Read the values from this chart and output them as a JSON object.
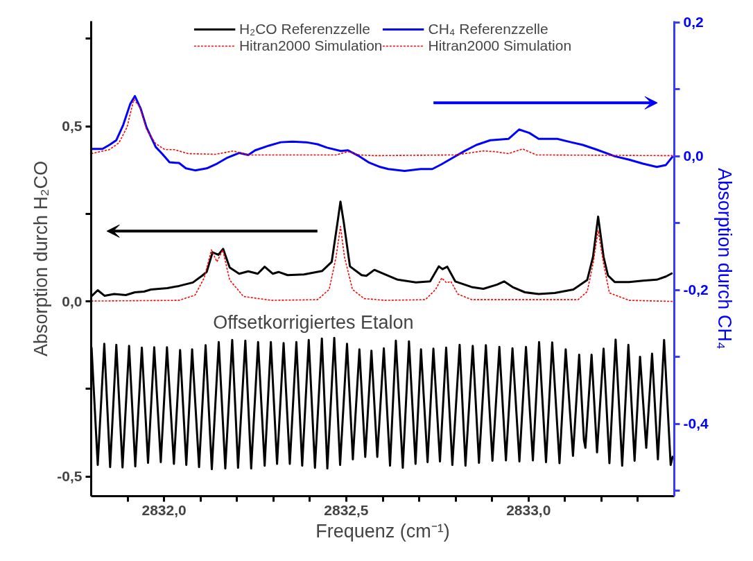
{
  "chart_data": {
    "type": "line",
    "xlabel": "Frequenz (cm⁻¹)",
    "ylabel": "Absorption durch H₂CO",
    "y2label": "Absorption durch CH₄",
    "xlim": [
      2831.8,
      2833.4
    ],
    "xticks": [
      {
        "value": 2831.9,
        "label": null
      },
      {
        "value": 2832.0,
        "label": "2832,0"
      },
      {
        "value": 2832.1,
        "label": null
      },
      {
        "value": 2832.2,
        "label": null
      },
      {
        "value": 2832.3,
        "label": null
      },
      {
        "value": 2832.4,
        "label": null
      },
      {
        "value": 2832.5,
        "label": "2832,5"
      },
      {
        "value": 2832.6,
        "label": null
      },
      {
        "value": 2832.7,
        "label": null
      },
      {
        "value": 2832.8,
        "label": null
      },
      {
        "value": 2832.9,
        "label": null
      },
      {
        "value": 2833.0,
        "label": "2833,0"
      },
      {
        "value": 2833.1,
        "label": null
      },
      {
        "value": 2833.2,
        "label": null
      },
      {
        "value": 2833.3,
        "label": null
      }
    ],
    "ylim": [
      -0.556,
      0.8
    ],
    "yticks": [
      {
        "value": -0.5,
        "label": "-0,5"
      },
      {
        "value": -0.25,
        "label": null
      },
      {
        "value": 0.0,
        "label": "0,0"
      },
      {
        "value": 0.25,
        "label": null
      },
      {
        "value": 0.5,
        "label": "0,5"
      },
      {
        "value": 0.75,
        "label": null
      }
    ],
    "y2lim": [
      -0.508,
      0.202
    ],
    "y2ticks": [
      {
        "value": -0.5,
        "label": null
      },
      {
        "value": -0.4,
        "label": "-0,4"
      },
      {
        "value": -0.3,
        "label": null
      },
      {
        "value": -0.2,
        "label": "-0,2"
      },
      {
        "value": -0.1,
        "label": null
      },
      {
        "value": 0.0,
        "label": "0,0"
      },
      {
        "value": 0.1,
        "label": null
      },
      {
        "value": 0.2,
        "label": "0,2"
      }
    ],
    "legend": "top",
    "annotations": [
      "Offsetkorrigiertes Etalon"
    ],
    "series": [
      {
        "name": "H₂CO Referenzzelle",
        "color": "#000000",
        "line_style": "solid",
        "x": [
          2831.8,
          2831.818,
          2831.837,
          2831.863,
          2831.895,
          2831.92,
          2831.945,
          2831.964,
          2832.009,
          2832.041,
          2832.079,
          2832.104,
          2832.117,
          2832.133,
          2832.149,
          2832.162,
          2832.18,
          2832.206,
          2832.231,
          2832.257,
          2832.276,
          2832.298,
          2832.314,
          2832.339,
          2832.384,
          2832.434,
          2832.46,
          2832.476,
          2832.484,
          2832.493,
          2832.51,
          2832.542,
          2832.555,
          2832.577,
          2832.606,
          2832.641,
          2832.691,
          2832.73,
          2832.754,
          2832.764,
          2832.777,
          2832.799,
          2832.844,
          2832.876,
          2832.914,
          2832.933,
          2832.958,
          2832.99,
          2833.028,
          2833.072,
          2833.123,
          2833.161,
          2833.177,
          2833.191,
          2833.206,
          2833.218,
          2833.237,
          2833.276,
          2833.314,
          2833.352,
          2833.377,
          2833.395
        ],
        "values": [
          0.014,
          0.032,
          0.016,
          0.021,
          0.018,
          0.026,
          0.028,
          0.034,
          0.038,
          0.044,
          0.054,
          0.073,
          0.084,
          0.14,
          0.133,
          0.15,
          0.097,
          0.079,
          0.086,
          0.079,
          0.099,
          0.079,
          0.084,
          0.075,
          0.077,
          0.087,
          0.113,
          0.226,
          0.285,
          0.226,
          0.1,
          0.075,
          0.073,
          0.09,
          0.077,
          0.062,
          0.054,
          0.057,
          0.1,
          0.092,
          0.099,
          0.057,
          0.041,
          0.036,
          0.048,
          0.057,
          0.04,
          0.026,
          0.021,
          0.024,
          0.034,
          0.061,
          0.127,
          0.242,
          0.127,
          0.074,
          0.055,
          0.055,
          0.059,
          0.062,
          0.071,
          0.081
        ]
      },
      {
        "name": "Hitran2000 Simulation",
        "color": "#ff0000",
        "line_style": "dashed",
        "x": [
          2831.8,
          2832.041,
          2832.085,
          2832.11,
          2832.13,
          2832.145,
          2832.161,
          2832.18,
          2832.218,
          2832.295,
          2832.421,
          2832.453,
          2832.472,
          2832.484,
          2832.495,
          2832.517,
          2832.549,
          2832.606,
          2832.717,
          2832.745,
          2832.762,
          2832.775,
          2832.787,
          2832.806,
          2832.844,
          2833.136,
          2833.161,
          2833.177,
          2833.191,
          2833.206,
          2833.222,
          2833.276,
          2833.395
        ],
        "values": [
          0.001,
          0.003,
          0.018,
          0.067,
          0.147,
          0.113,
          0.147,
          0.061,
          0.014,
          0.003,
          0.005,
          0.034,
          0.127,
          0.214,
          0.127,
          0.034,
          0.008,
          0.003,
          0.005,
          0.034,
          0.067,
          0.053,
          0.057,
          0.021,
          0.005,
          0.005,
          0.028,
          0.107,
          0.203,
          0.107,
          0.024,
          0.003,
          0.0
        ]
      },
      {
        "name": "CH₄ Referenzzelle",
        "color": "#0000ff",
        "line_style": "solid",
        "axis": "y2",
        "x": [
          2831.8,
          2831.831,
          2831.85,
          2831.869,
          2831.888,
          2831.907,
          2831.92,
          2831.936,
          2831.952,
          2831.977,
          2831.996,
          2832.015,
          2832.041,
          2832.06,
          2832.085,
          2832.117,
          2832.142,
          2832.174,
          2832.206,
          2832.231,
          2832.25,
          2832.288,
          2832.32,
          2832.352,
          2832.39,
          2832.421,
          2832.447,
          2832.485,
          2832.504,
          2832.536,
          2832.561,
          2832.593,
          2832.615,
          2832.66,
          2832.704,
          2832.736,
          2832.761,
          2832.793,
          2832.825,
          2832.857,
          2832.895,
          2832.945,
          2832.974,
          2833.002,
          2833.028,
          2833.079,
          2833.117,
          2833.149,
          2833.187,
          2833.237,
          2833.276,
          2833.314,
          2833.352,
          2833.377,
          2833.396
        ],
        "values": [
          0.011,
          0.011,
          0.017,
          0.024,
          0.047,
          0.078,
          0.09,
          0.071,
          0.043,
          0.014,
          0.003,
          -0.009,
          -0.01,
          -0.018,
          -0.021,
          -0.018,
          -0.012,
          -0.002,
          0.005,
          0.002,
          0.009,
          0.016,
          0.021,
          0.022,
          0.021,
          0.018,
          0.013,
          0.008,
          0.009,
          0.0,
          -0.009,
          -0.016,
          -0.019,
          -0.022,
          -0.019,
          -0.019,
          -0.012,
          -0.002,
          0.008,
          0.017,
          0.024,
          0.026,
          0.04,
          0.035,
          0.026,
          0.026,
          0.021,
          0.017,
          0.01,
          0.0,
          -0.005,
          -0.011,
          -0.016,
          -0.013,
          0.0
        ]
      },
      {
        "name": "Hitran2000 Simulation",
        "color": "#ff0000",
        "line_style": "dashed",
        "axis": "y2",
        "x": [
          2831.8,
          2831.85,
          2831.876,
          2831.898,
          2831.917,
          2831.933,
          2831.952,
          2831.977,
          2832.002,
          2832.028,
          2832.066,
          2832.142,
          2832.19,
          2832.231,
          2832.421,
          2832.472,
          2832.504,
          2832.536,
          2832.577,
          2832.799,
          2832.876,
          2832.907,
          2832.945,
          2832.984,
          2833.022,
          2833.396
        ],
        "values": [
          0.004,
          0.01,
          0.02,
          0.043,
          0.085,
          0.074,
          0.04,
          0.019,
          0.01,
          0.01,
          0.004,
          0.003,
          0.008,
          0.002,
          0.002,
          0.002,
          0.007,
          0.002,
          0.001,
          0.002,
          0.008,
          0.007,
          0.004,
          0.011,
          0.002,
          0.001
        ]
      },
      {
        "color": "#000000",
        "line_style": "solid",
        "x": [
          2831.801,
          2831.818,
          2831.836,
          2831.852,
          2831.869,
          2831.886,
          2831.904,
          2831.921,
          2831.939,
          2831.956,
          2831.973,
          2831.991,
          2832.008,
          2832.027,
          2832.044,
          2832.061,
          2832.077,
          2832.096,
          2832.114,
          2832.131,
          2832.15,
          2832.168,
          2832.187,
          2832.203,
          2832.223,
          2832.239,
          2832.258,
          2832.276,
          2832.293,
          2832.31,
          2832.328,
          2832.345,
          2832.363,
          2832.379,
          2832.397,
          2832.414,
          2832.433,
          2832.448,
          2832.467,
          2832.483,
          2832.502,
          2832.518,
          2832.536,
          2832.552,
          2832.569,
          2832.585,
          2832.603,
          2832.62,
          2832.636,
          2832.655,
          2832.672,
          2832.69,
          2832.705,
          2832.723,
          2832.739,
          2832.757,
          2832.774,
          2832.791,
          2832.811,
          2832.827,
          2832.847,
          2832.864,
          2832.883,
          2832.901,
          2832.92,
          2832.938,
          2832.956,
          2832.975,
          2832.993,
          2833.012,
          2833.029,
          2833.048,
          2833.065,
          2833.085,
          2833.102,
          2833.122,
          2833.139,
          2833.152,
          2833.156,
          2833.173,
          2833.188,
          2833.206,
          2833.222,
          2833.239,
          2833.257,
          2833.274,
          2833.291,
          2833.306,
          2833.323,
          2833.339,
          2833.355,
          2833.372,
          2833.39,
          2833.396
        ],
        "values": [
          -0.131,
          -0.467,
          -0.121,
          -0.473,
          -0.124,
          -0.474,
          -0.127,
          -0.471,
          -0.132,
          -0.461,
          -0.131,
          -0.459,
          -0.131,
          -0.464,
          -0.139,
          -0.467,
          -0.137,
          -0.473,
          -0.125,
          -0.479,
          -0.116,
          -0.477,
          -0.11,
          -0.475,
          -0.112,
          -0.477,
          -0.116,
          -0.469,
          -0.116,
          -0.464,
          -0.119,
          -0.464,
          -0.116,
          -0.469,
          -0.11,
          -0.475,
          -0.106,
          -0.477,
          -0.104,
          -0.467,
          -0.121,
          -0.451,
          -0.137,
          -0.444,
          -0.141,
          -0.444,
          -0.134,
          -0.469,
          -0.112,
          -0.475,
          -0.114,
          -0.464,
          -0.137,
          -0.459,
          -0.135,
          -0.457,
          -0.132,
          -0.467,
          -0.124,
          -0.469,
          -0.127,
          -0.461,
          -0.125,
          -0.455,
          -0.13,
          -0.454,
          -0.134,
          -0.457,
          -0.13,
          -0.454,
          -0.116,
          -0.459,
          -0.117,
          -0.462,
          -0.137,
          -0.441,
          -0.152,
          -0.395,
          -0.418,
          -0.152,
          -0.431,
          -0.135,
          -0.462,
          -0.109,
          -0.469,
          -0.124,
          -0.455,
          -0.158,
          -0.418,
          -0.149,
          -0.451,
          -0.11,
          -0.467,
          -0.441
        ]
      }
    ]
  }
}
